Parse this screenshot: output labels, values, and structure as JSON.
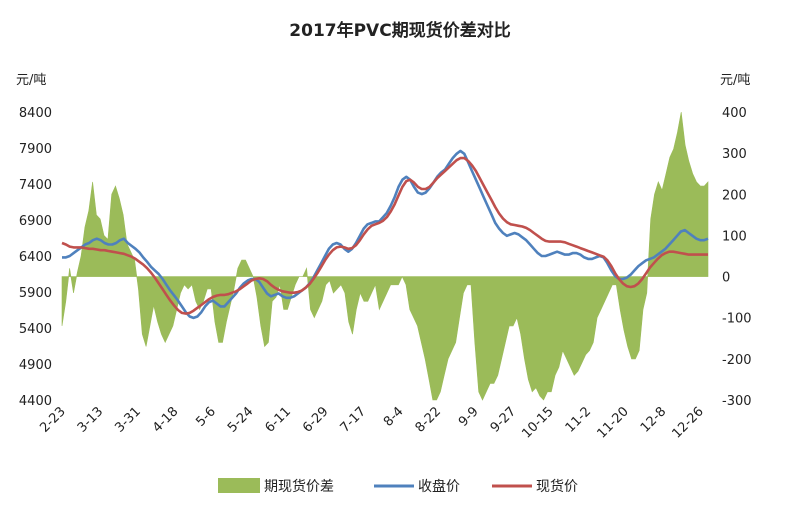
{
  "chart_data": {
    "type": "line",
    "title": "2017年PVC期现货价差对比",
    "left_axis": {
      "unit": "元/吨",
      "ticks": [
        4400,
        4900,
        5400,
        5900,
        6400,
        6900,
        7400,
        7900,
        8400
      ],
      "range": [
        4400,
        8400
      ]
    },
    "right_axis": {
      "unit": "元/吨",
      "ticks": [
        -300,
        -200,
        -100,
        0,
        100,
        200,
        300,
        400
      ],
      "range": [
        -300,
        400
      ]
    },
    "x_ticks": [
      "2-23",
      "3-13",
      "3-31",
      "4-18",
      "5-6",
      "5-24",
      "6-11",
      "6-29",
      "7-17",
      "8-4",
      "8-22",
      "9-9",
      "9-27",
      "10-15",
      "11-2",
      "11-20",
      "12-8",
      "12-26"
    ],
    "legend": [
      "期现货价差",
      "收盘价",
      "现货价"
    ],
    "colors": {
      "spread": "#9bbb59",
      "close": "#4f81bd",
      "spot": "#c0504d"
    },
    "series": [
      {
        "name": "收盘价",
        "axis": "left",
        "values": [
          6380,
          6380,
          6400,
          6440,
          6480,
          6520,
          6560,
          6580,
          6620,
          6640,
          6620,
          6580,
          6560,
          6560,
          6580,
          6620,
          6640,
          6580,
          6540,
          6500,
          6450,
          6380,
          6320,
          6250,
          6200,
          6150,
          6080,
          6000,
          5920,
          5850,
          5780,
          5700,
          5620,
          5560,
          5540,
          5560,
          5620,
          5700,
          5760,
          5780,
          5740,
          5700,
          5700,
          5760,
          5820,
          5880,
          5960,
          6020,
          6060,
          6080,
          6080,
          6040,
          5960,
          5880,
          5840,
          5860,
          5880,
          5840,
          5820,
          5820,
          5840,
          5880,
          5920,
          5960,
          6020,
          6100,
          6200,
          6300,
          6400,
          6500,
          6560,
          6580,
          6560,
          6500,
          6460,
          6500,
          6580,
          6680,
          6780,
          6840,
          6860,
          6880,
          6880,
          6940,
          7000,
          7100,
          7220,
          7360,
          7460,
          7500,
          7460,
          7360,
          7280,
          7260,
          7280,
          7340,
          7420,
          7500,
          7560,
          7600,
          7680,
          7760,
          7820,
          7860,
          7820,
          7700,
          7580,
          7460,
          7340,
          7220,
          7100,
          6980,
          6860,
          6780,
          6720,
          6680,
          6700,
          6720,
          6700,
          6660,
          6620,
          6560,
          6500,
          6440,
          6400,
          6400,
          6420,
          6440,
          6460,
          6440,
          6420,
          6420,
          6440,
          6440,
          6420,
          6380,
          6360,
          6360,
          6380,
          6400,
          6380,
          6300,
          6200,
          6120,
          6080,
          6080,
          6100,
          6140,
          6200,
          6260,
          6300,
          6340,
          6360,
          6380,
          6420,
          6460,
          6500,
          6560,
          6620,
          6680,
          6740,
          6760,
          6720,
          6680,
          6640,
          6620,
          6620,
          6640
        ]
      },
      {
        "name": "现货价",
        "axis": "left",
        "values": [
          6580,
          6560,
          6530,
          6520,
          6520,
          6520,
          6510,
          6500,
          6500,
          6490,
          6480,
          6480,
          6470,
          6460,
          6450,
          6440,
          6430,
          6410,
          6390,
          6360,
          6320,
          6280,
          6230,
          6170,
          6100,
          6020,
          5940,
          5860,
          5780,
          5710,
          5650,
          5610,
          5600,
          5610,
          5640,
          5680,
          5720,
          5760,
          5800,
          5830,
          5850,
          5860,
          5860,
          5870,
          5890,
          5910,
          5940,
          5980,
          6020,
          6060,
          6080,
          6090,
          6080,
          6050,
          6000,
          5960,
          5930,
          5910,
          5900,
          5890,
          5890,
          5900,
          5920,
          5960,
          6010,
          6080,
          6160,
          6250,
          6340,
          6420,
          6480,
          6520,
          6530,
          6520,
          6500,
          6510,
          6550,
          6620,
          6700,
          6770,
          6820,
          6840,
          6860,
          6890,
          6940,
          7020,
          7120,
          7240,
          7360,
          7440,
          7460,
          7420,
          7360,
          7330,
          7330,
          7360,
          7420,
          7480,
          7530,
          7580,
          7630,
          7680,
          7730,
          7760,
          7760,
          7720,
          7660,
          7580,
          7480,
          7380,
          7280,
          7180,
          7080,
          6990,
          6920,
          6870,
          6840,
          6830,
          6820,
          6810,
          6790,
          6760,
          6720,
          6680,
          6640,
          6610,
          6600,
          6600,
          6600,
          6600,
          6590,
          6570,
          6550,
          6530,
          6510,
          6490,
          6470,
          6450,
          6430,
          6410,
          6390,
          6340,
          6260,
          6160,
          6080,
          6020,
          5980,
          5970,
          5980,
          6020,
          6080,
          6160,
          6240,
          6300,
          6360,
          6410,
          6440,
          6460,
          6460,
          6450,
          6440,
          6430,
          6420,
          6420,
          6420,
          6420,
          6420,
          6420
        ]
      },
      {
        "name": "期现货价差",
        "axis": "right",
        "values": [
          -120,
          -60,
          20,
          -40,
          10,
          50,
          120,
          160,
          230,
          150,
          140,
          100,
          90,
          200,
          220,
          190,
          150,
          80,
          60,
          40,
          -30,
          -140,
          -170,
          -120,
          -70,
          -110,
          -140,
          -160,
          -140,
          -120,
          -80,
          -40,
          -20,
          -30,
          -20,
          -60,
          -80,
          -60,
          -30,
          -30,
          -110,
          -160,
          -160,
          -110,
          -70,
          -30,
          20,
          40,
          40,
          20,
          0,
          -50,
          -120,
          -170,
          -160,
          -60,
          -50,
          -20,
          -80,
          -80,
          -50,
          -20,
          0,
          0,
          20,
          -80,
          -100,
          -80,
          -60,
          -20,
          -10,
          -40,
          -30,
          -20,
          -40,
          -110,
          -140,
          -80,
          -40,
          -60,
          -60,
          -40,
          -20,
          -80,
          -60,
          -40,
          -20,
          -20,
          -20,
          0,
          -20,
          -80,
          -100,
          -120,
          -160,
          -200,
          -250,
          -300,
          -300,
          -280,
          -240,
          -200,
          -180,
          -160,
          -100,
          -40,
          -20,
          -20,
          -160,
          -280,
          -300,
          -280,
          -260,
          -260,
          -240,
          -200,
          -160,
          -120,
          -120,
          -100,
          -140,
          -200,
          -250,
          -280,
          -270,
          -290,
          -300,
          -280,
          -280,
          -240,
          -220,
          -180,
          -200,
          -220,
          -240,
          -230,
          -210,
          -190,
          -180,
          -160,
          -100,
          -80,
          -60,
          -40,
          -20,
          -20,
          -80,
          -130,
          -170,
          -200,
          -200,
          -180,
          -80,
          -40,
          140,
          200,
          230,
          210,
          250,
          290,
          310,
          350,
          400,
          320,
          280,
          250,
          230,
          220,
          220,
          230
        ]
      }
    ]
  }
}
